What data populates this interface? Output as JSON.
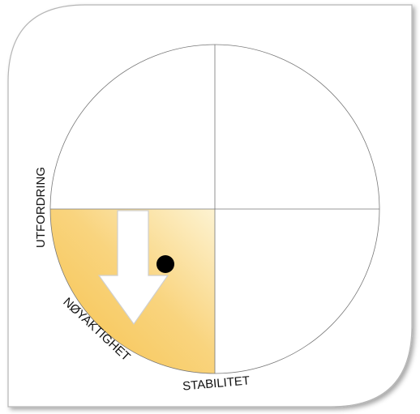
{
  "labels": {
    "left": "UTFORDRING",
    "bottom_left": "NØYAKTIGHET",
    "bottom": "STABILITET"
  }
}
